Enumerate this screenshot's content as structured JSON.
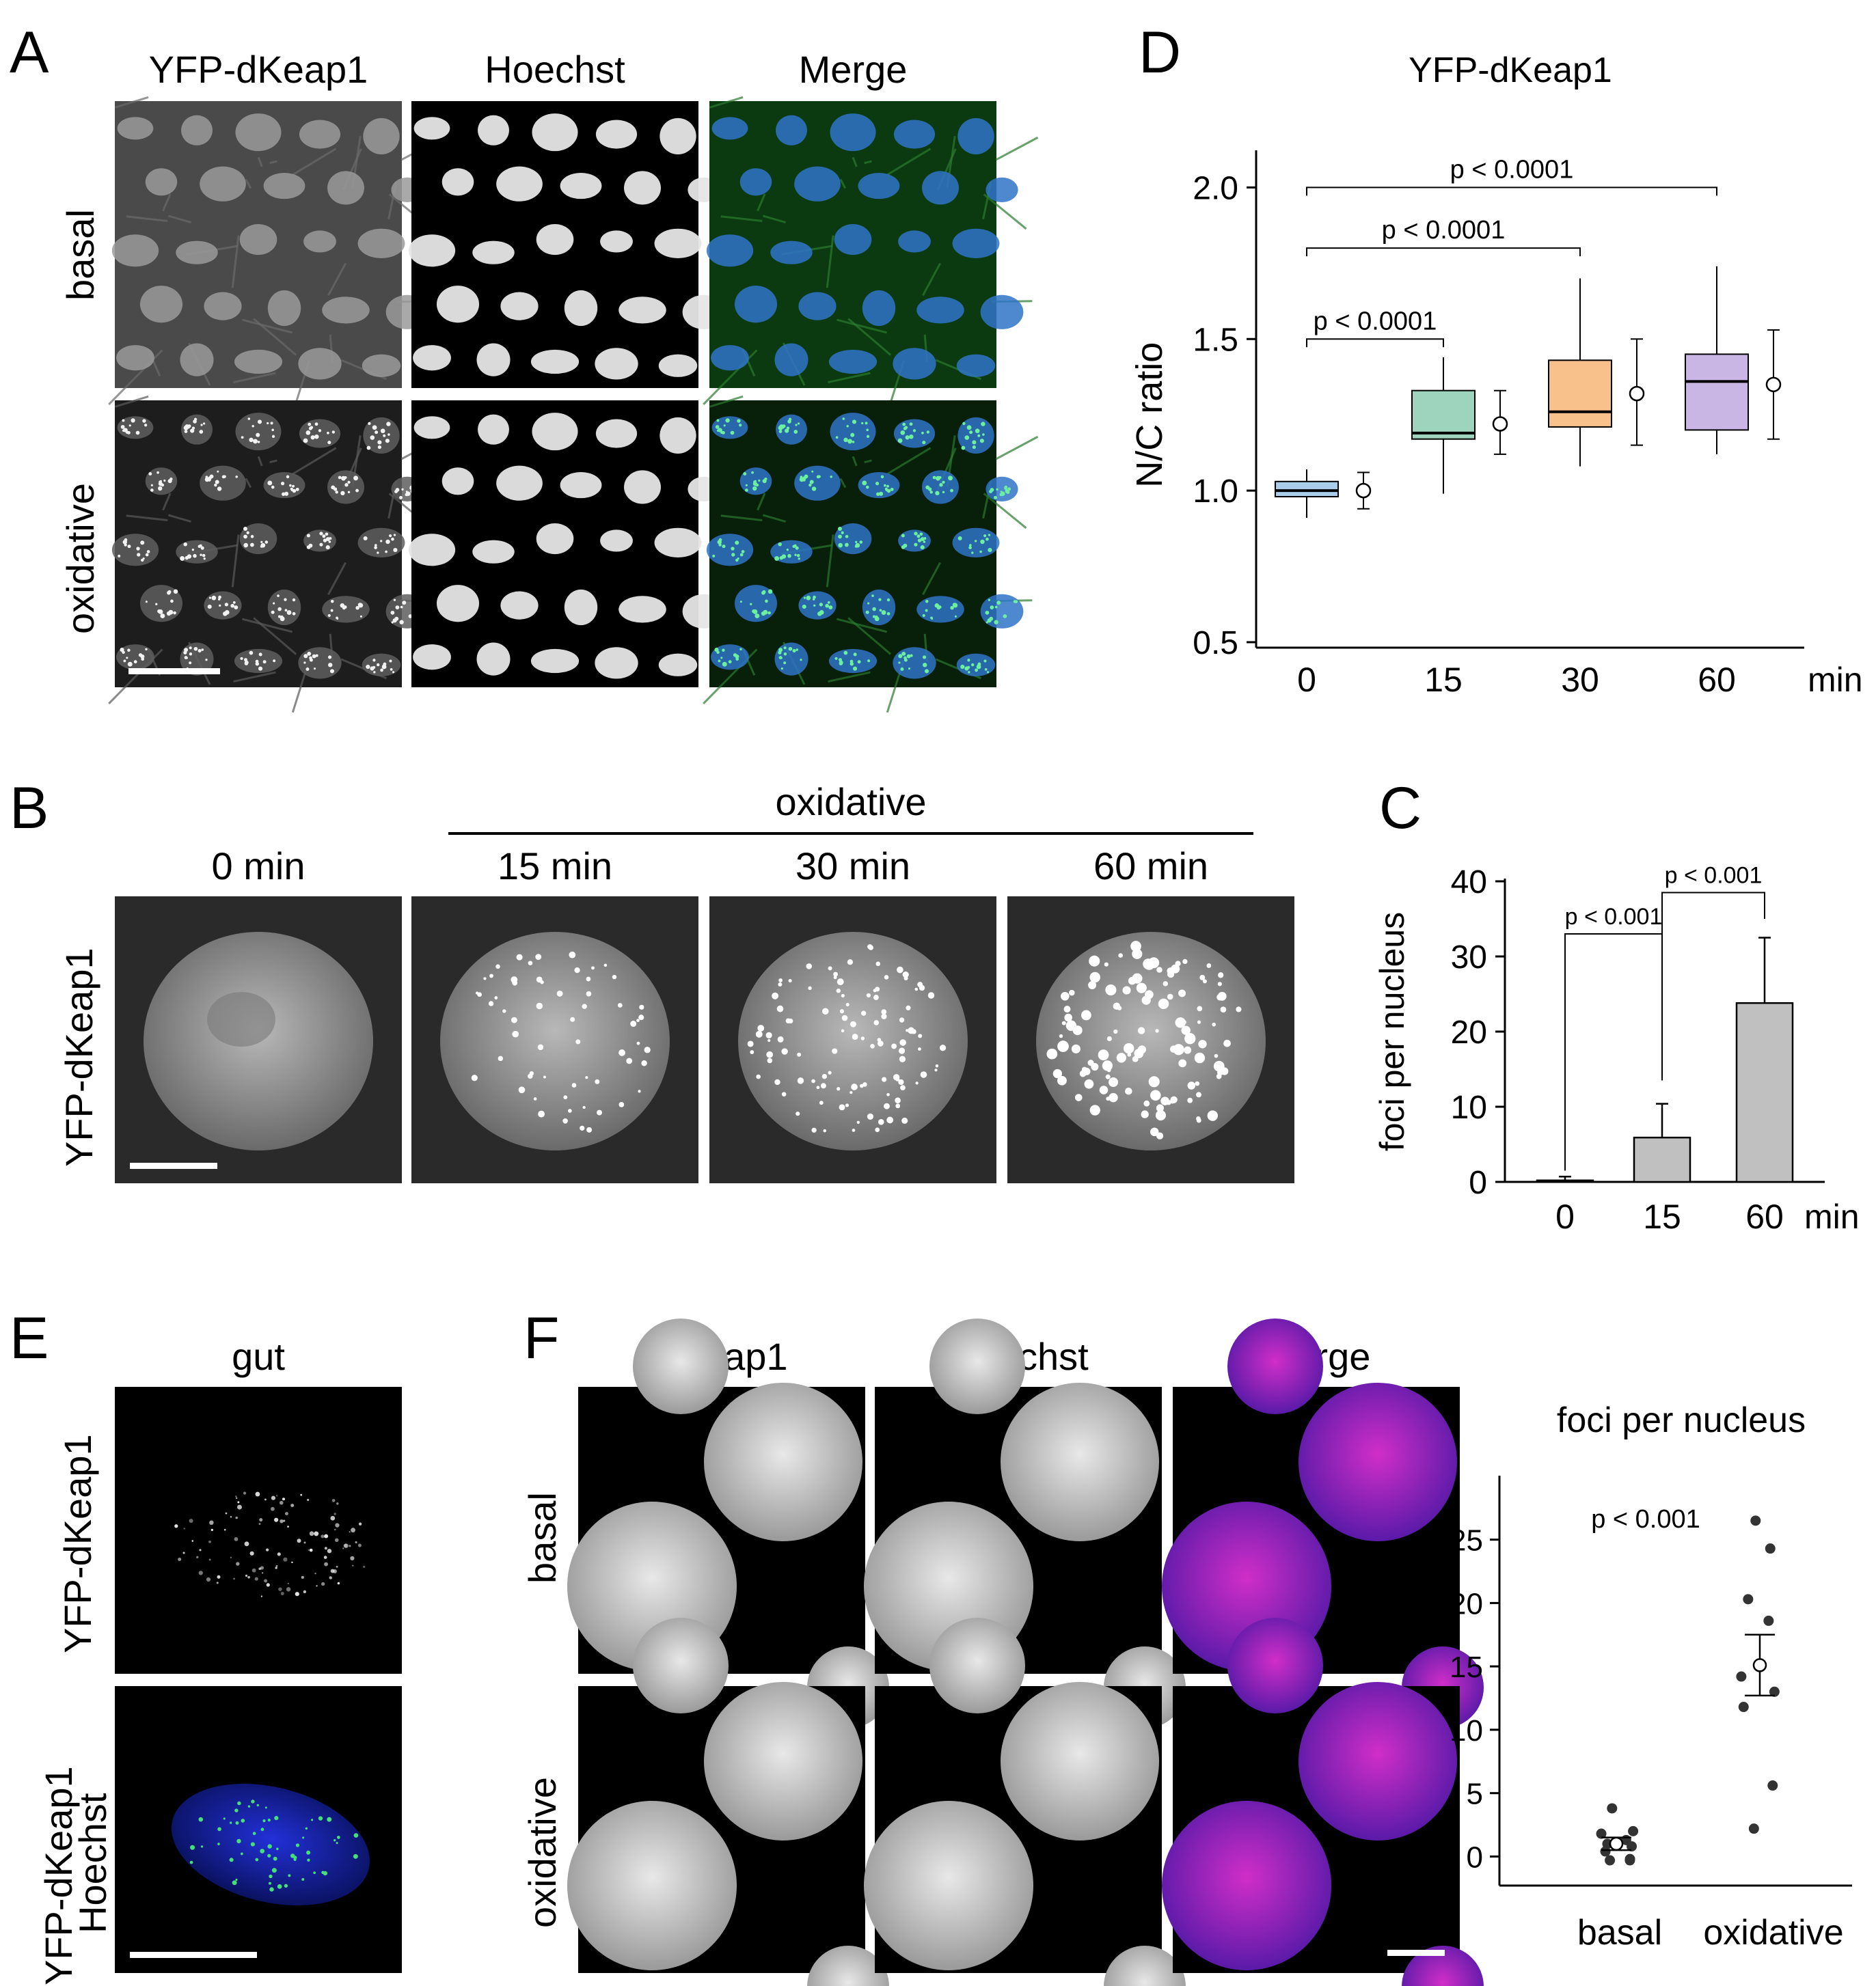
{
  "figure": {
    "panelA": {
      "letter": "A",
      "columns": [
        "YFP-dKeap1",
        "Hoechst",
        "Merge"
      ],
      "rows": [
        "basal",
        "oxidative"
      ]
    },
    "panelB": {
      "letter": "B",
      "group_label": "oxidative",
      "timepoints": [
        "0 min",
        "15 min",
        "30 min",
        "60 min"
      ],
      "row_label": "YFP-dKeap1"
    },
    "panelC": {
      "letter": "C",
      "chart_data": {
        "type": "bar",
        "categories": [
          "0",
          "15",
          "60"
        ],
        "x_unit": "min",
        "values": [
          0.2,
          5.9,
          23.8
        ],
        "error_upper": [
          0.7,
          10.4,
          32.5
        ],
        "ylabel": "foci per nucleus",
        "ylim": [
          0,
          40
        ],
        "yticks": [
          0,
          10,
          20,
          30,
          40
        ],
        "comparisons": [
          {
            "from": "0",
            "to": "15",
            "label": "p < 0.001"
          },
          {
            "from": "15",
            "to": "60",
            "label": "p < 0.001"
          }
        ],
        "colors": {
          "bar": "#c0c0c0"
        }
      }
    },
    "panelD": {
      "letter": "D",
      "chart_data": {
        "type": "box",
        "title": "YFP-dKeap1",
        "ylabel": "N/C ratio",
        "x_unit": "min",
        "categories": [
          "0",
          "15",
          "30",
          "60"
        ],
        "ylim": [
          0.5,
          2.1
        ],
        "yticks": [
          "0.5",
          "1.0",
          "1.5",
          "2.0"
        ],
        "boxes": [
          {
            "whisker_low": 0.91,
            "q1": 0.98,
            "median": 1.0,
            "q3": 1.03,
            "whisker_high": 1.07
          },
          {
            "whisker_low": 0.99,
            "q1": 1.17,
            "median": 1.19,
            "q3": 1.33,
            "whisker_high": 1.44
          },
          {
            "whisker_low": 1.08,
            "q1": 1.21,
            "median": 1.26,
            "q3": 1.43,
            "whisker_high": 1.7
          },
          {
            "whisker_low": 1.12,
            "q1": 1.2,
            "median": 1.36,
            "q3": 1.45,
            "whisker_high": 1.74
          }
        ],
        "means": [
          {
            "mean": 1.0,
            "low": 0.94,
            "high": 1.06
          },
          {
            "mean": 1.22,
            "low": 1.12,
            "high": 1.33
          },
          {
            "mean": 1.32,
            "low": 1.15,
            "high": 1.5
          },
          {
            "mean": 1.35,
            "low": 1.17,
            "high": 1.53
          }
        ],
        "comparisons": [
          {
            "from": "0",
            "to": "15",
            "label": "p < 0.0001"
          },
          {
            "from": "0",
            "to": "30",
            "label": "p < 0.0001"
          },
          {
            "from": "0",
            "to": "60",
            "label": "p < 0.0001"
          }
        ],
        "colors": {
          "box": [
            "#a9cdea",
            "#9ed3bd",
            "#f8c08a",
            "#c9b6e4"
          ]
        }
      }
    },
    "panelE": {
      "letter": "E",
      "column": "gut",
      "rows": [
        "YFP-dKeap1",
        "YFP-dKeap1 Hoechst"
      ],
      "row2_lines": [
        "YFP-dKeap1",
        "Hoechst"
      ]
    },
    "panelF": {
      "letter": "F",
      "columns": [
        "dKeap1",
        "Hoechst",
        "Merge"
      ],
      "rows": [
        "basal",
        "oxidative"
      ],
      "chart_data": {
        "type": "scatter",
        "title": "foci per nucleus",
        "categories": [
          "basal",
          "oxidative"
        ],
        "ylim": [
          -1,
          28
        ],
        "yticks": [
          0,
          5,
          10,
          15,
          20,
          25
        ],
        "series": [
          {
            "values": [
              3.8,
              2.0,
              1.8,
              1.3,
              1.0,
              0.8,
              0.4,
              -0.2,
              -0.3,
              -0.3
            ]
          },
          {
            "values": [
              26.5,
              24.3,
              20.3,
              18.6,
              14.2,
              13.0,
              11.8,
              5.6,
              2.2
            ]
          }
        ],
        "mean": [
          1.0,
          15.1
        ],
        "sem": [
          0.5,
          2.4
        ],
        "annotation": "p < 0.001"
      }
    }
  }
}
